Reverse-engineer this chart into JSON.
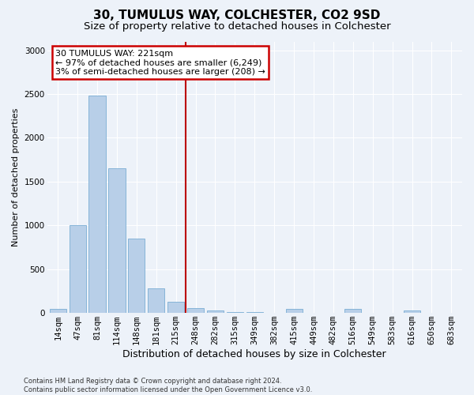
{
  "title": "30, TUMULUS WAY, COLCHESTER, CO2 9SD",
  "subtitle": "Size of property relative to detached houses in Colchester",
  "xlabel": "Distribution of detached houses by size in Colchester",
  "ylabel": "Number of detached properties",
  "categories": [
    "14sqm",
    "47sqm",
    "81sqm",
    "114sqm",
    "148sqm",
    "181sqm",
    "215sqm",
    "248sqm",
    "282sqm",
    "315sqm",
    "349sqm",
    "382sqm",
    "415sqm",
    "449sqm",
    "482sqm",
    "516sqm",
    "549sqm",
    "583sqm",
    "616sqm",
    "650sqm",
    "683sqm"
  ],
  "values": [
    50,
    1000,
    2480,
    1650,
    850,
    280,
    130,
    55,
    30,
    15,
    8,
    5,
    50,
    5,
    3,
    50,
    3,
    3,
    30,
    3,
    3
  ],
  "bar_color": "#b8cfe8",
  "bar_edgecolor": "#7aadd4",
  "vline_x_index": 7,
  "annotation_text": "30 TUMULUS WAY: 221sqm\n← 97% of detached houses are smaller (6,249)\n3% of semi-detached houses are larger (208) →",
  "annotation_box_facecolor": "#ffffff",
  "annotation_box_edgecolor": "#cc0000",
  "footer": "Contains HM Land Registry data © Crown copyright and database right 2024.\nContains public sector information licensed under the Open Government Licence v3.0.",
  "ylim": [
    0,
    3100
  ],
  "yticks": [
    0,
    500,
    1000,
    1500,
    2000,
    2500,
    3000
  ],
  "background_color": "#edf2f9",
  "grid_color": "#ffffff",
  "title_fontsize": 11,
  "subtitle_fontsize": 9.5,
  "xlabel_fontsize": 9,
  "ylabel_fontsize": 8,
  "tick_fontsize": 7.5,
  "annotation_fontsize": 8,
  "footer_fontsize": 6
}
